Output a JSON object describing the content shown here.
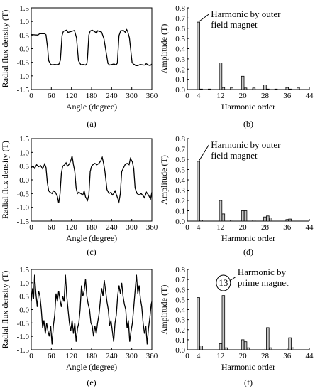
{
  "chart_data": [
    {
      "id": "a",
      "type": "line",
      "panel_label": "(a)",
      "xlabel": "Angle (degree)",
      "ylabel": "Radial flux density (T)",
      "xlim": [
        0,
        360
      ],
      "ylim": [
        -1.5,
        1.5
      ],
      "xticks": [
        "0",
        "60",
        "120",
        "180",
        "240",
        "300",
        "360"
      ],
      "yticks": [
        "-1.5",
        "-1.0",
        "-0.5",
        "0.0",
        "0.5",
        "1.0",
        "1.5"
      ],
      "series": [
        {
          "x": [
            0,
            20,
            25,
            40,
            44,
            49,
            52,
            58,
            63,
            70,
            79,
            83,
            87,
            92,
            96,
            105,
            110,
            121,
            129,
            131,
            135,
            141,
            148,
            155,
            162,
            166,
            168,
            172,
            176,
            182,
            190,
            195,
            198,
            210,
            217,
            229,
            234,
            247,
            253,
            257,
            262,
            267,
            275,
            281,
            285,
            288,
            293,
            301,
            305,
            308,
            312,
            318,
            325,
            331,
            335,
            340,
            343,
            350,
            355,
            360
          ],
          "y": [
            0.52,
            0.5,
            0.55,
            0.55,
            0.51,
            0.02,
            -0.44,
            -0.58,
            -0.59,
            -0.58,
            -0.59,
            -0.56,
            -0.42,
            0.48,
            0.64,
            0.68,
            0.6,
            0.64,
            0.67,
            0.58,
            0.4,
            -0.44,
            -0.59,
            -0.58,
            -0.6,
            -0.55,
            -0.35,
            0.5,
            0.65,
            0.68,
            0.62,
            0.58,
            0.66,
            0.61,
            0.36,
            -0.54,
            -0.6,
            -0.56,
            -0.6,
            -0.53,
            0.48,
            0.66,
            0.67,
            0.6,
            0.7,
            0.63,
            0.4,
            -0.5,
            -0.57,
            -0.58,
            -0.62,
            -0.62,
            -0.58,
            -0.59,
            -0.6,
            -0.6,
            -0.55,
            -0.6,
            -0.62,
            -0.56
          ]
        }
      ]
    },
    {
      "id": "b",
      "type": "bar",
      "panel_label": "(b)",
      "xlabel": "Harmonic order",
      "ylabel": "Amplitude (T)",
      "xlim": [
        0,
        44
      ],
      "ylim": [
        0,
        0.8
      ],
      "xticks": [
        "0",
        "4",
        "12",
        "20",
        "28",
        "36",
        "44"
      ],
      "yticks": [
        "0.0",
        "0.1",
        "0.2",
        "0.3",
        "0.4",
        "0.5",
        "0.6",
        "0.7",
        "0.8"
      ],
      "x": [
        4,
        5,
        8,
        12,
        13,
        16,
        20,
        21,
        24,
        28,
        29,
        32,
        36,
        37,
        40
      ],
      "values": [
        0.66,
        0.005,
        0.005,
        0.26,
        0.02,
        0.02,
        0.13,
        0.015,
        0.015,
        0.045,
        0.005,
        0.005,
        0.02,
        0.005,
        0.02
      ],
      "annotation": "Harmonic by outer field magnet"
    },
    {
      "id": "c",
      "type": "line",
      "panel_label": "(c)",
      "xlabel": "Angle (degree)",
      "ylabel": "Radial flux density (T)",
      "xlim": [
        0,
        360
      ],
      "ylim": [
        -1.5,
        1.5
      ],
      "xticks": [
        "0",
        "60",
        "120",
        "180",
        "240",
        "300",
        "360"
      ],
      "yticks": [
        "-1.5",
        "-1.0",
        "-0.5",
        "0.0",
        "0.5",
        "1.0",
        "1.5"
      ],
      "series": [
        {
          "x": [
            0,
            6,
            10,
            16,
            22,
            28,
            34,
            40,
            44,
            48,
            52,
            56,
            62,
            66,
            72,
            78,
            82,
            86,
            90,
            94,
            100,
            104,
            108,
            114,
            118,
            122,
            126,
            130,
            134,
            138,
            142,
            148,
            154,
            158,
            162,
            168,
            172,
            176,
            180,
            184,
            190,
            196,
            202,
            208,
            212,
            216,
            220,
            226,
            232,
            238,
            242,
            246,
            250,
            256,
            262,
            266,
            270,
            276,
            280,
            286,
            292,
            296,
            302,
            306,
            310,
            316,
            322,
            328,
            334,
            338,
            344,
            350,
            356,
            360
          ],
          "y": [
            0.45,
            0.5,
            0.42,
            0.55,
            0.48,
            0.52,
            0.4,
            0.58,
            0.45,
            -0.1,
            -0.4,
            -0.45,
            -0.5,
            -0.4,
            -0.45,
            -0.6,
            -0.85,
            -0.5,
            0.25,
            0.5,
            0.55,
            0.62,
            0.5,
            0.58,
            0.7,
            0.87,
            0.55,
            0.3,
            -0.3,
            -0.5,
            -0.45,
            -0.5,
            -0.55,
            -0.4,
            -0.62,
            -0.75,
            -0.55,
            0.3,
            0.5,
            0.55,
            0.6,
            0.55,
            0.6,
            0.7,
            0.82,
            0.6,
            0.3,
            -0.35,
            -0.5,
            -0.45,
            -0.55,
            -0.5,
            -0.4,
            -0.6,
            -0.8,
            -0.5,
            0.3,
            0.45,
            0.55,
            0.6,
            0.55,
            0.78,
            0.65,
            0.4,
            -0.3,
            -0.5,
            -0.55,
            -0.5,
            -0.58,
            -0.65,
            -0.45,
            -0.55,
            -0.7,
            -0.45
          ]
        }
      ]
    },
    {
      "id": "d",
      "type": "bar",
      "panel_label": "(d)",
      "xlabel": "Harmonic order",
      "ylabel": "Amplitude (T)",
      "xlim": [
        0,
        44
      ],
      "ylim": [
        0,
        0.8
      ],
      "xticks": [
        "0",
        "4",
        "12",
        "20",
        "28",
        "36",
        "44"
      ],
      "yticks": [
        "0.0",
        "0.1",
        "0.2",
        "0.3",
        "0.4",
        "0.5",
        "0.6",
        "0.7",
        "0.8"
      ],
      "x": [
        4,
        5,
        12,
        13,
        16,
        20,
        21,
        24,
        28,
        29,
        30,
        36,
        37
      ],
      "values": [
        0.58,
        0.01,
        0.2,
        0.07,
        0.01,
        0.1,
        0.1,
        0.01,
        0.04,
        0.05,
        0.03,
        0.015,
        0.02
      ],
      "annotation": "Harmonic by outer field magnet"
    },
    {
      "id": "e",
      "type": "line",
      "panel_label": "(e)",
      "xlabel": "Angle (degree)",
      "ylabel": "Radial flux density (T)",
      "xlim": [
        0,
        360
      ],
      "ylim": [
        -1.5,
        1.5
      ],
      "xticks": [
        "0",
        "60",
        "120",
        "180",
        "240",
        "300",
        "360"
      ],
      "yticks": [
        "-1.5",
        "-1.0",
        "-0.5",
        "0.0",
        "0.5",
        "1.0",
        "1.5"
      ],
      "series": [
        {
          "x": [
            0,
            4,
            7,
            10,
            14,
            18,
            22,
            26,
            30,
            34,
            38,
            42,
            46,
            50,
            54,
            58,
            62,
            66,
            70,
            74,
            78,
            82,
            86,
            90,
            94,
            98,
            102,
            106,
            110,
            114,
            118,
            122,
            126,
            130,
            134,
            138,
            142,
            146,
            150,
            154,
            158,
            162,
            166,
            170,
            174,
            178,
            182,
            186,
            190,
            194,
            198,
            202,
            206,
            210,
            214,
            218,
            222,
            226,
            230,
            234,
            238,
            242,
            246,
            250,
            254,
            258,
            262,
            266,
            270,
            274,
            278,
            282,
            286,
            290,
            294,
            298,
            302,
            306,
            310,
            314,
            318,
            322,
            326,
            330,
            334,
            338,
            342,
            346,
            350,
            354,
            358,
            360
          ],
          "y": [
            0.3,
            0.8,
            0.4,
            1.3,
            0.6,
            0.1,
            0.7,
            0.5,
            0.0,
            -0.7,
            -0.4,
            -0.9,
            -0.5,
            -0.8,
            -1.0,
            -0.6,
            -1.3,
            -0.6,
            -0.2,
            0.6,
            0.3,
            0.7,
            0.35,
            0.1,
            0.5,
            0.3,
            1.3,
            0.5,
            0.0,
            -0.5,
            -0.8,
            -0.4,
            -0.9,
            -0.5,
            -1.2,
            -0.7,
            -0.5,
            0.0,
            0.9,
            0.5,
            0.7,
            1.15,
            0.5,
            0.2,
            0.0,
            -0.5,
            -0.6,
            -1.0,
            -0.6,
            -0.9,
            -0.5,
            -0.2,
            0.3,
            0.8,
            0.5,
            1.1,
            0.7,
            0.3,
            0.0,
            -0.6,
            -0.4,
            -0.8,
            -1.2,
            -0.5,
            -0.2,
            0.5,
            0.9,
            0.6,
            1.0,
            0.5,
            0.2,
            0.0,
            -0.7,
            -0.4,
            -1.2,
            -0.8,
            -0.5,
            0.1,
            0.7,
            1.3,
            0.6,
            0.9,
            0.4,
            0.1,
            -0.5,
            -0.9,
            -0.6,
            -1.3,
            -0.7,
            -0.3,
            0.2,
            0.3
          ]
        }
      ]
    },
    {
      "id": "f",
      "type": "bar",
      "panel_label": "(f)",
      "xlabel": "Harmonic order",
      "ylabel": "Amplitude (T)",
      "xlim": [
        0,
        44
      ],
      "ylim": [
        0,
        0.8
      ],
      "xticks": [
        "0",
        "4",
        "12",
        "20",
        "28",
        "36",
        "44"
      ],
      "yticks": [
        "0.0",
        "0.1",
        "0.2",
        "0.3",
        "0.4",
        "0.5",
        "0.6",
        "0.7",
        "0.8"
      ],
      "x": [
        4,
        5,
        12,
        13,
        14,
        20,
        21,
        22,
        29,
        30,
        37,
        38
      ],
      "values": [
        0.52,
        0.04,
        0.06,
        0.54,
        0.02,
        0.1,
        0.08,
        0.02,
        0.22,
        0.02,
        0.12,
        0.02
      ],
      "annotation": "Harmonic by prime magnet",
      "circle_label": "13"
    }
  ]
}
